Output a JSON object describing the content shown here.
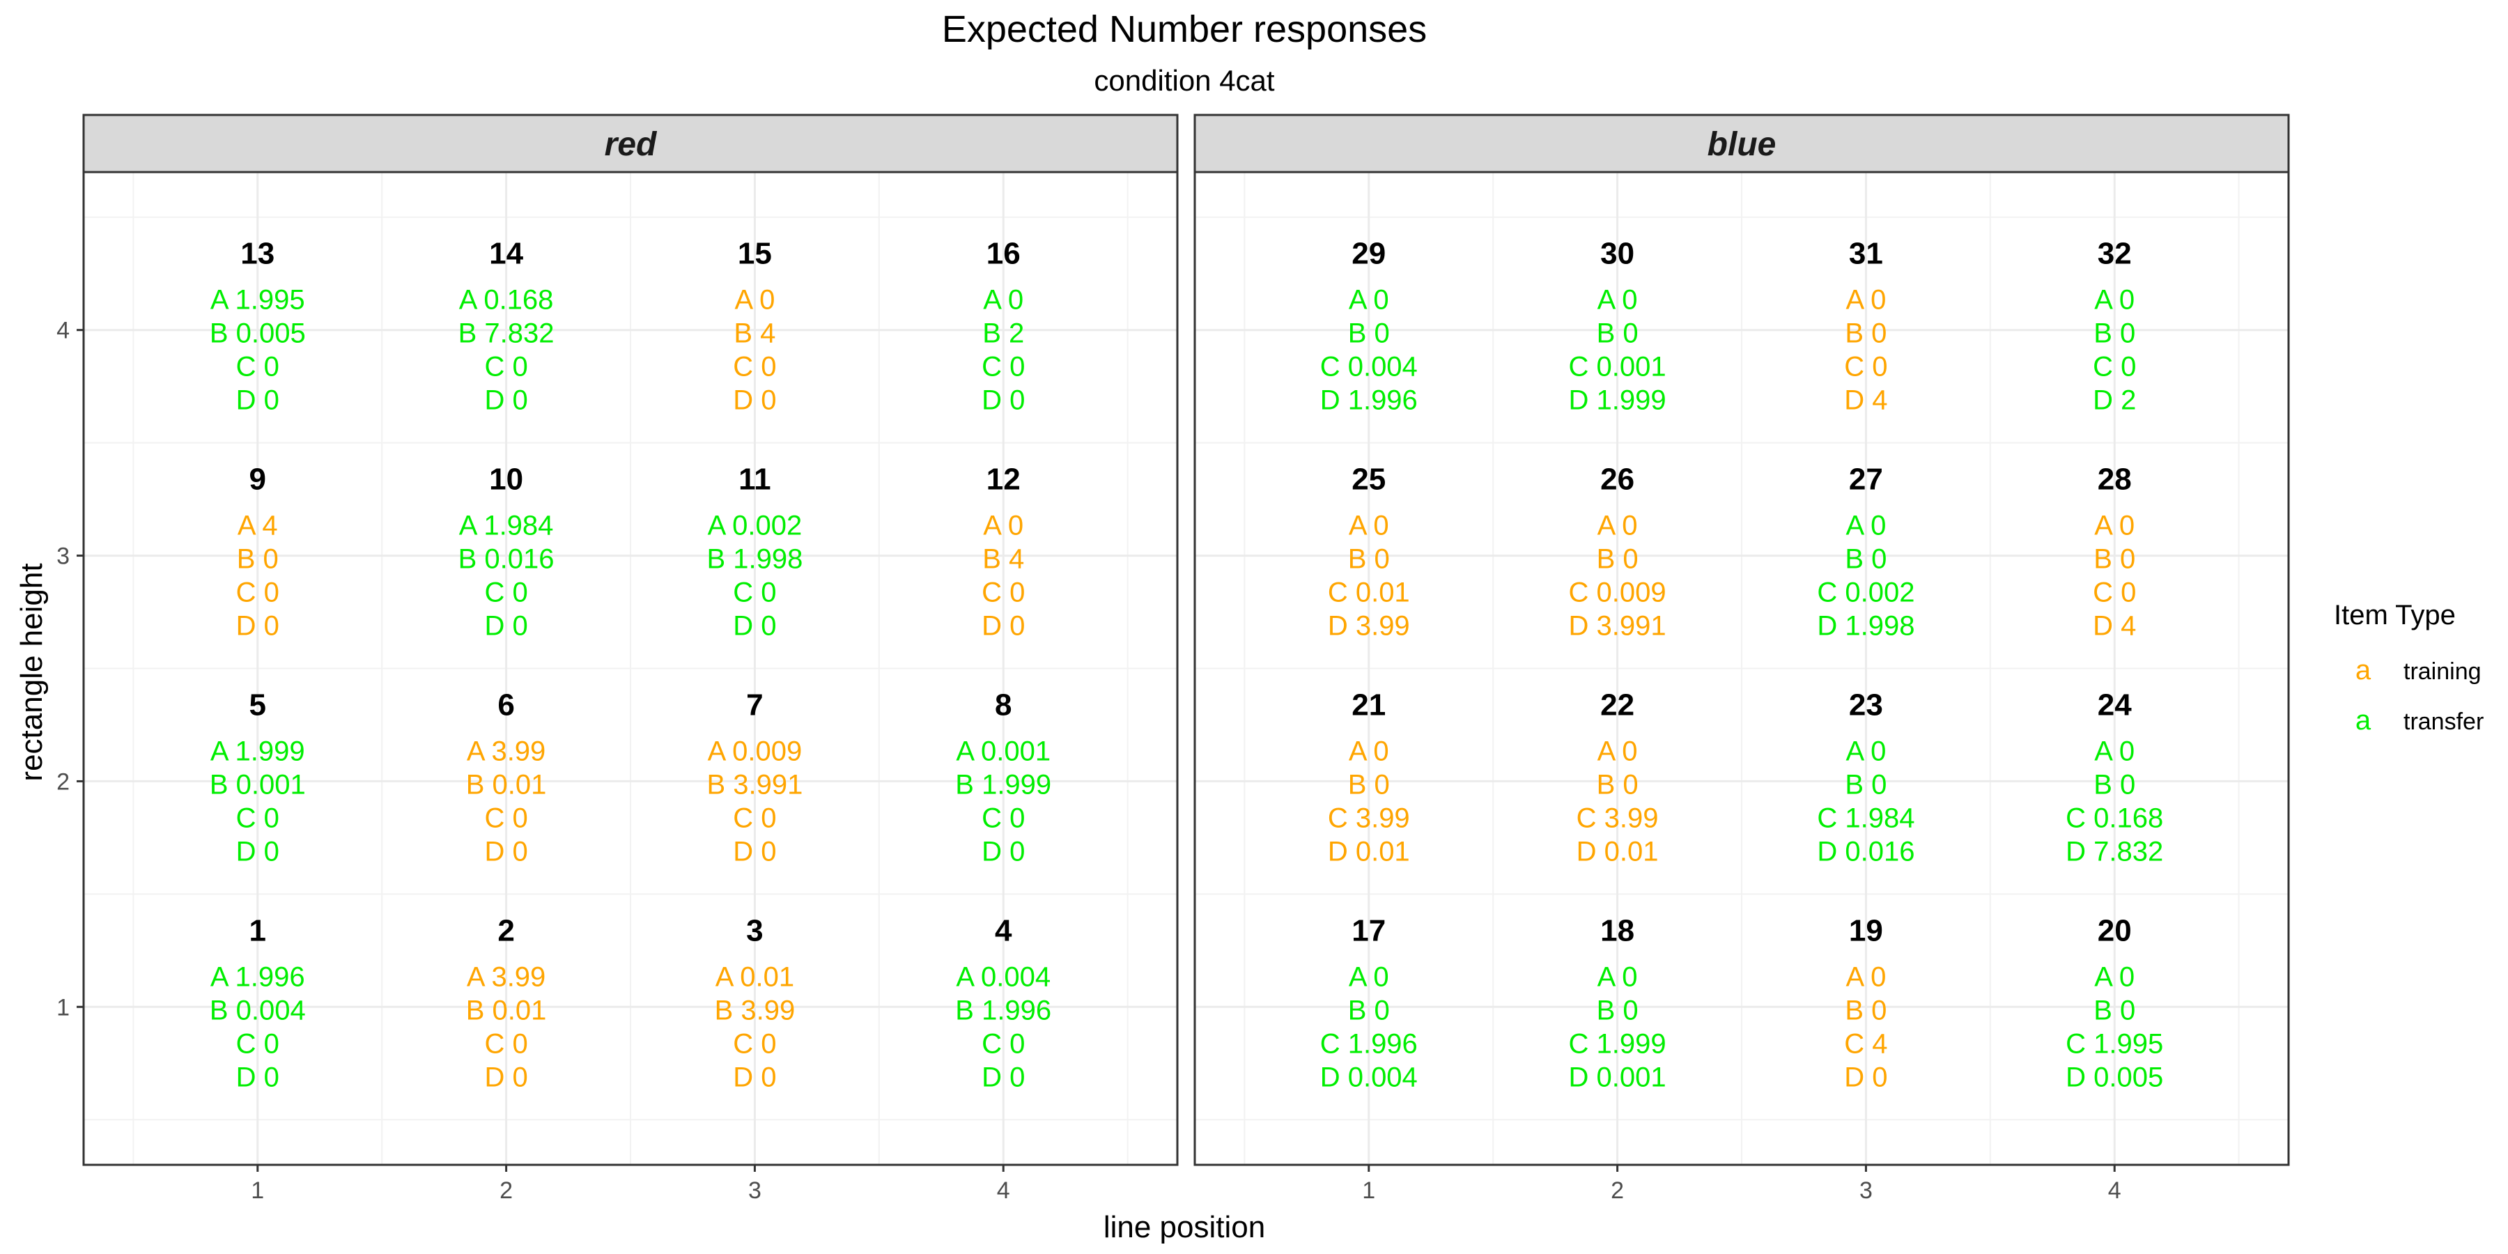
{
  "chart_data": {
    "type": "table",
    "title": "Expected Number responses",
    "subtitle": "condition 4cat",
    "xlabel": "line position",
    "ylabel": "rectangle height",
    "x_ticks": [
      "1",
      "2",
      "3",
      "4"
    ],
    "y_ticks": [
      "1",
      "2",
      "3",
      "4"
    ],
    "xlim": [
      0.3,
      4.7
    ],
    "ylim": [
      0.3,
      4.7
    ],
    "grid": true,
    "legend": {
      "title": "Item Type",
      "position": "right",
      "glyph": "a",
      "items": [
        {
          "label": "training",
          "color": "#FFA500"
        },
        {
          "label": "transfer",
          "color": "#00EE00"
        }
      ]
    },
    "colors": {
      "training": "#FFA500",
      "transfer": "#00EE00"
    },
    "panels": [
      {
        "strip": "red",
        "cells": [
          {
            "id": "13",
            "x": 1,
            "y": 4,
            "type": "transfer",
            "lines": [
              "A  1.995",
              "B  0.005",
              "C  0",
              "D  0"
            ]
          },
          {
            "id": "14",
            "x": 2,
            "y": 4,
            "type": "transfer",
            "lines": [
              "A  0.168",
              "B  7.832",
              "C  0",
              "D  0"
            ]
          },
          {
            "id": "15",
            "x": 3,
            "y": 4,
            "type": "training",
            "lines": [
              "A  0",
              "B  4",
              "C  0",
              "D  0"
            ]
          },
          {
            "id": "16",
            "x": 4,
            "y": 4,
            "type": "transfer",
            "lines": [
              "A  0",
              "B  2",
              "C  0",
              "D  0"
            ]
          },
          {
            "id": "9",
            "x": 1,
            "y": 3,
            "type": "training",
            "lines": [
              "A  4",
              "B  0",
              "C  0",
              "D  0"
            ]
          },
          {
            "id": "10",
            "x": 2,
            "y": 3,
            "type": "transfer",
            "lines": [
              "A  1.984",
              "B  0.016",
              "C  0",
              "D  0"
            ]
          },
          {
            "id": "11",
            "x": 3,
            "y": 3,
            "type": "transfer",
            "lines": [
              "A  0.002",
              "B  1.998",
              "C  0",
              "D  0"
            ]
          },
          {
            "id": "12",
            "x": 4,
            "y": 3,
            "type": "training",
            "lines": [
              "A  0",
              "B  4",
              "C  0",
              "D  0"
            ]
          },
          {
            "id": "5",
            "x": 1,
            "y": 2,
            "type": "transfer",
            "lines": [
              "A  1.999",
              "B  0.001",
              "C  0",
              "D  0"
            ]
          },
          {
            "id": "6",
            "x": 2,
            "y": 2,
            "type": "training",
            "lines": [
              "A  3.99",
              "B  0.01",
              "C  0",
              "D  0"
            ]
          },
          {
            "id": "7",
            "x": 3,
            "y": 2,
            "type": "training",
            "lines": [
              "A  0.009",
              "B  3.991",
              "C  0",
              "D  0"
            ]
          },
          {
            "id": "8",
            "x": 4,
            "y": 2,
            "type": "transfer",
            "lines": [
              "A  0.001",
              "B  1.999",
              "C  0",
              "D  0"
            ]
          },
          {
            "id": "1",
            "x": 1,
            "y": 1,
            "type": "transfer",
            "lines": [
              "A  1.996",
              "B  0.004",
              "C  0",
              "D  0"
            ]
          },
          {
            "id": "2",
            "x": 2,
            "y": 1,
            "type": "training",
            "lines": [
              "A  3.99",
              "B  0.01",
              "C  0",
              "D  0"
            ]
          },
          {
            "id": "3",
            "x": 3,
            "y": 1,
            "type": "training",
            "lines": [
              "A  0.01",
              "B  3.99",
              "C  0",
              "D  0"
            ]
          },
          {
            "id": "4",
            "x": 4,
            "y": 1,
            "type": "transfer",
            "lines": [
              "A  0.004",
              "B  1.996",
              "C  0",
              "D  0"
            ]
          }
        ]
      },
      {
        "strip": "blue",
        "cells": [
          {
            "id": "29",
            "x": 1,
            "y": 4,
            "type": "transfer",
            "lines": [
              "A  0",
              "B  0",
              "C  0.004",
              "D  1.996"
            ]
          },
          {
            "id": "30",
            "x": 2,
            "y": 4,
            "type": "transfer",
            "lines": [
              "A  0",
              "B  0",
              "C  0.001",
              "D  1.999"
            ]
          },
          {
            "id": "31",
            "x": 3,
            "y": 4,
            "type": "training",
            "lines": [
              "A  0",
              "B  0",
              "C  0",
              "D  4"
            ]
          },
          {
            "id": "32",
            "x": 4,
            "y": 4,
            "type": "transfer",
            "lines": [
              "A  0",
              "B  0",
              "C  0",
              "D  2"
            ]
          },
          {
            "id": "25",
            "x": 1,
            "y": 3,
            "type": "training",
            "lines": [
              "A  0",
              "B  0",
              "C  0.01",
              "D  3.99"
            ]
          },
          {
            "id": "26",
            "x": 2,
            "y": 3,
            "type": "training",
            "lines": [
              "A  0",
              "B  0",
              "C  0.009",
              "D  3.991"
            ]
          },
          {
            "id": "27",
            "x": 3,
            "y": 3,
            "type": "transfer",
            "lines": [
              "A  0",
              "B  0",
              "C  0.002",
              "D  1.998"
            ]
          },
          {
            "id": "28",
            "x": 4,
            "y": 3,
            "type": "training",
            "lines": [
              "A  0",
              "B  0",
              "C  0",
              "D  4"
            ]
          },
          {
            "id": "21",
            "x": 1,
            "y": 2,
            "type": "training",
            "lines": [
              "A  0",
              "B  0",
              "C  3.99",
              "D  0.01"
            ]
          },
          {
            "id": "22",
            "x": 2,
            "y": 2,
            "type": "training",
            "lines": [
              "A  0",
              "B  0",
              "C  3.99",
              "D  0.01"
            ]
          },
          {
            "id": "23",
            "x": 3,
            "y": 2,
            "type": "transfer",
            "lines": [
              "A  0",
              "B  0",
              "C  1.984",
              "D  0.016"
            ]
          },
          {
            "id": "24",
            "x": 4,
            "y": 2,
            "type": "transfer",
            "lines": [
              "A  0",
              "B  0",
              "C  0.168",
              "D  7.832"
            ]
          },
          {
            "id": "17",
            "x": 1,
            "y": 1,
            "type": "transfer",
            "lines": [
              "A  0",
              "B  0",
              "C  1.996",
              "D  0.004"
            ]
          },
          {
            "id": "18",
            "x": 2,
            "y": 1,
            "type": "transfer",
            "lines": [
              "A  0",
              "B  0",
              "C  1.999",
              "D  0.001"
            ]
          },
          {
            "id": "19",
            "x": 3,
            "y": 1,
            "type": "training",
            "lines": [
              "A  0",
              "B  0",
              "C  4",
              "D  0"
            ]
          },
          {
            "id": "20",
            "x": 4,
            "y": 1,
            "type": "transfer",
            "lines": [
              "A  0",
              "B  0",
              "C  1.995",
              "D  0.005"
            ]
          }
        ]
      }
    ]
  }
}
